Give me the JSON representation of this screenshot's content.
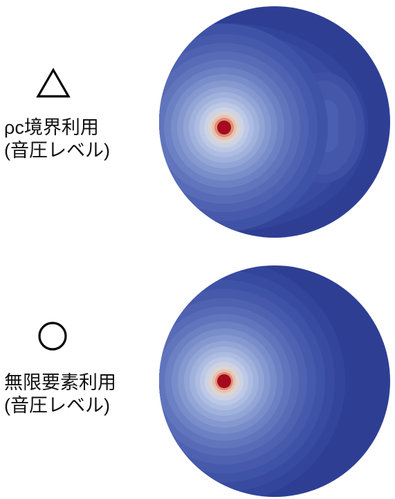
{
  "panels": [
    {
      "symbol": "triangle-icon",
      "caption_line1": "ρc境界利用",
      "caption_line2": "(音圧レベル)"
    },
    {
      "symbol": "circle-icon",
      "caption_line1": "無限要素利用",
      "caption_line2": "(音圧レベル)"
    }
  ],
  "colors": {
    "field_low": "#2e3f93",
    "field_mid": "#8fa3d6",
    "field_high": "#e7d2c0",
    "source": "#a50a1e"
  }
}
